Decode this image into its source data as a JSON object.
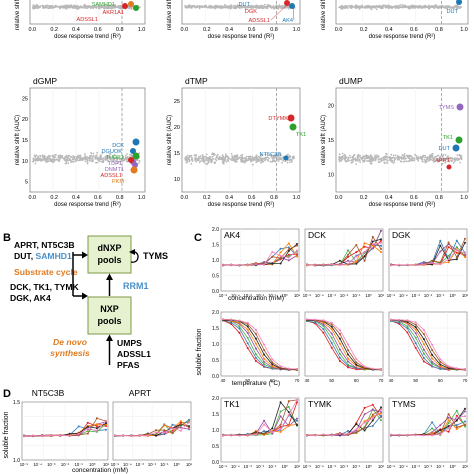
{
  "colors": {
    "grey_points": "#b9b9b9",
    "frame": "#8c8c8c",
    "panel_bg": "#ececec",
    "dashed_line": "#9a9a9a",
    "green_box": "#e5f1cf",
    "green_box_border": "#7e9a4a",
    "orange": "#e07b1f",
    "blue": "#4a90c8",
    "label_blue": "#1f77b4",
    "label_green": "#2ca02c",
    "label_red": "#d62728",
    "label_orange": "#e07b1f",
    "label_purple": "#9467bd"
  },
  "panel_a": {
    "axis_x_label": "dose response trend (R²)",
    "axis_y_label": "relative shift (AUC)",
    "x_ticks": [
      "0.0",
      "0.2",
      "0.4",
      "0.6",
      "0.8",
      "1.0"
    ],
    "top_row": [
      {
        "title": "",
        "labels": [
          {
            "text": "SAMHD1",
            "color": "#2ca02c"
          },
          {
            "text": "AKR1A1",
            "color": "#d62728"
          },
          {
            "text": "ADSSL1",
            "color": "#d62728"
          }
        ]
      },
      {
        "title": "",
        "labels": [
          {
            "text": "DUT",
            "color": "#1f77b4"
          },
          {
            "text": "DGK",
            "color": "#d62728"
          },
          {
            "text": "ADSSL1",
            "color": "#d62728"
          },
          {
            "text": "AK4",
            "color": "#1f77b4"
          }
        ]
      },
      {
        "title": "",
        "labels": [
          {
            "text": "DUT",
            "color": "#1f77b4"
          }
        ]
      }
    ],
    "bottom_row": [
      {
        "title": "dGMP",
        "y_ticks": [
          "5",
          "10",
          "15",
          "20",
          "25"
        ],
        "labels": [
          {
            "text": "DCK",
            "color": "#1f77b4"
          },
          {
            "text": "DGUOK",
            "color": "#1f77b4"
          },
          {
            "text": "TUDE1",
            "color": "#2ca02c"
          },
          {
            "text": "TDP1",
            "color": "#9467bd"
          },
          {
            "text": "DNMT1",
            "color": "#9467bd"
          },
          {
            "text": "ADSSL1",
            "color": "#d62728"
          },
          {
            "text": "PKM",
            "color": "#e07b1f"
          }
        ]
      },
      {
        "title": "dTMP",
        "y_ticks": [
          "10",
          "15",
          "20",
          "25"
        ],
        "labels": [
          {
            "text": "DTYMK",
            "color": "#d62728"
          },
          {
            "text": "TK1",
            "color": "#2ca02c"
          },
          {
            "text": "NT5C3B",
            "color": "#1f77b4"
          }
        ]
      },
      {
        "title": "dUMP",
        "y_ticks": [
          "10",
          "15",
          "20"
        ],
        "labels": [
          {
            "text": "TYMS",
            "color": "#9467bd"
          },
          {
            "text": "TK1",
            "color": "#2ca02c"
          },
          {
            "text": "DUT",
            "color": "#1f77b4"
          },
          {
            "text": "APRT",
            "color": "#d62728"
          }
        ]
      }
    ]
  },
  "panel_b": {
    "letter": "B",
    "salvage_line1": "APRT, NT5C3B",
    "salvage_line2_a": "DUT, ",
    "salvage_line2_b": "SAMHD1",
    "substrate_cycle": "Substrate cycle",
    "kinases_line1": "DCK, TK1, TYMK",
    "kinases_line2": "DGK, AK4",
    "dnxp_line1": "dNXP",
    "dnxp_line2": "pools",
    "nxp_line1": "NXP",
    "nxp_line2": "pools",
    "tyms": "TYMS",
    "rrm1": "RRM1",
    "de_novo_line1": "De novo",
    "de_novo_line2": "synthesis",
    "synth_line1": "UMPS",
    "synth_line2": "ADSSL1",
    "synth_line3": "PFAS"
  },
  "panel_c": {
    "letter": "C",
    "axis_y_label": "soluble fraction",
    "conc_label": "concentration (mM)",
    "temp_label": "temperature (°C)",
    "row_titles": [
      "AK4",
      "DCK",
      "DGK",
      "TK1",
      "TYMK",
      "TYMS"
    ],
    "y_ticks": [
      "0.0",
      "0.5",
      "1.0",
      "1.5",
      "2.0"
    ],
    "conc_ticks": [
      "10⁻⁵",
      "10⁻⁴",
      "10⁻³",
      "10⁻²",
      "10⁻¹",
      "10⁰",
      "10¹"
    ],
    "temp_ticks": [
      "40",
      "50",
      "60",
      "70"
    ]
  },
  "panel_d": {
    "letter": "D",
    "titles": [
      "NT5C3B",
      "APRT"
    ],
    "axis_y_label": "soluble fraction",
    "axis_x_label": "concentration (mM)",
    "y_ticks": [
      "1.0",
      "1.5"
    ]
  },
  "curve_colors": [
    "#e41a1c",
    "#377eb8",
    "#4daf4a",
    "#984ea3",
    "#ff7f00",
    "#222222",
    "#a65628",
    "#f781bf",
    "#17becf",
    "#7f7f00"
  ]
}
